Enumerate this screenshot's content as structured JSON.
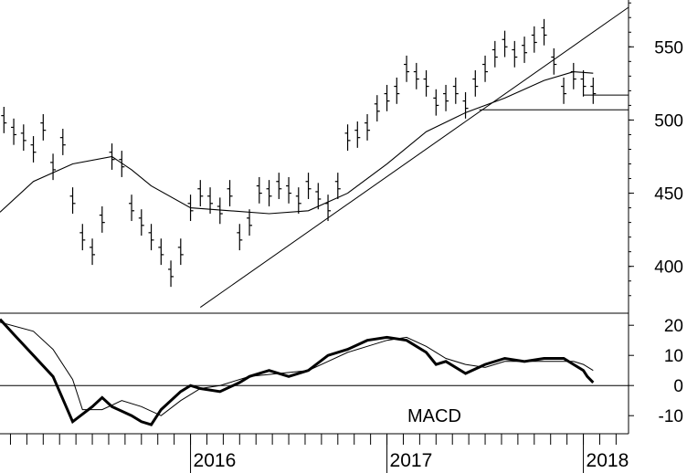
{
  "chart_data": [
    {
      "type": "line",
      "title": "",
      "xlabel": "",
      "ylabel": "",
      "ylim": [
        368,
        582
      ],
      "yticks": [
        400,
        450,
        500,
        550
      ],
      "x_ticks": [
        "2016",
        "2017",
        "2018"
      ],
      "x_range": [
        2015.03,
        2018.23
      ],
      "grid": false,
      "series": [
        {
          "style": "weekly-bars",
          "x": [
            2015.05,
            2015.1,
            2015.15,
            2015.2,
            2015.25,
            2015.3,
            2015.35,
            2015.4,
            2015.45,
            2015.5,
            2015.55,
            2015.6,
            2015.65,
            2015.7,
            2015.75,
            2015.8,
            2015.85,
            2015.9,
            2015.95,
            2016.0,
            2016.05,
            2016.1,
            2016.15,
            2016.2,
            2016.25,
            2016.3,
            2016.35,
            2016.4,
            2016.45,
            2016.5,
            2016.55,
            2016.6,
            2016.65,
            2016.7,
            2016.75,
            2016.8,
            2016.85,
            2016.9,
            2016.95,
            2017.0,
            2017.05,
            2017.1,
            2017.15,
            2017.2,
            2017.25,
            2017.3,
            2017.35,
            2017.4,
            2017.45,
            2017.5,
            2017.55,
            2017.6,
            2017.65,
            2017.7,
            2017.75,
            2017.8,
            2017.85,
            2017.9,
            2017.95,
            2018.0,
            2018.05
          ],
          "y": [
            500,
            492,
            488,
            480,
            495,
            468,
            485,
            445,
            420,
            410,
            432,
            475,
            470,
            440,
            430,
            420,
            410,
            395,
            410,
            440,
            450,
            445,
            438,
            450,
            420,
            430,
            452,
            450,
            455,
            452,
            445,
            455,
            448,
            440,
            455,
            488,
            490,
            495,
            508,
            515,
            520,
            535,
            530,
            525,
            512,
            515,
            520,
            510,
            525,
            535,
            545,
            552,
            545,
            548,
            555,
            560,
            540,
            520,
            530,
            525,
            520
          ]
        }
      ],
      "moving_average": {
        "x": [
          2015.03,
          2015.2,
          2015.4,
          2015.6,
          2015.7,
          2015.8,
          2016.0,
          2016.2,
          2016.4,
          2016.6,
          2016.8,
          2017.0,
          2017.2,
          2017.4,
          2017.6,
          2017.8,
          2017.95,
          2018.05
        ],
        "y": [
          437,
          458,
          470,
          475,
          466,
          455,
          440,
          438,
          436,
          438,
          450,
          470,
          492,
          505,
          515,
          527,
          533,
          532
        ]
      },
      "annotations": {
        "trendline": {
          "from": [
            2016.05,
            372
          ],
          "to": [
            2018.23,
            577
          ]
        },
        "support_lines": [
          {
            "y": 507,
            "x_from": 2017.47,
            "x_to": 2018.23
          },
          {
            "y": 517,
            "x_from": 2018.0,
            "x_to": 2018.23
          }
        ]
      }
    },
    {
      "type": "line",
      "title": "MACD",
      "ylim": [
        -16,
        24
      ],
      "yticks": [
        20,
        10,
        0,
        -10
      ],
      "x_range": [
        2015.03,
        2018.23
      ],
      "series": [
        {
          "style": "thick",
          "x": [
            2015.03,
            2015.1,
            2015.2,
            2015.3,
            2015.4,
            2015.5,
            2015.55,
            2015.6,
            2015.7,
            2015.75,
            2015.8,
            2015.85,
            2015.95,
            2016.0,
            2016.05,
            2016.15,
            2016.25,
            2016.3,
            2016.4,
            2016.5,
            2016.6,
            2016.7,
            2016.8,
            2016.9,
            2017.0,
            2017.1,
            2017.2,
            2017.25,
            2017.3,
            2017.4,
            2017.5,
            2017.6,
            2017.7,
            2017.8,
            2017.9,
            2017.95,
            2018.0,
            2018.02,
            2018.05
          ],
          "y": [
            22,
            17,
            10,
            3,
            -12,
            -7,
            -4,
            -7,
            -10,
            -12,
            -13,
            -8,
            -2,
            0,
            -1,
            -2,
            1,
            3,
            5,
            3,
            5,
            10,
            12,
            15,
            16,
            15,
            11,
            7,
            8,
            4,
            7,
            9,
            8,
            9,
            9,
            7,
            5,
            3,
            1
          ]
        },
        {
          "style": "thin",
          "x": [
            2015.03,
            2015.2,
            2015.3,
            2015.4,
            2015.45,
            2015.55,
            2015.65,
            2015.75,
            2015.85,
            2015.95,
            2016.05,
            2016.15,
            2016.3,
            2016.45,
            2016.6,
            2016.7,
            2016.8,
            2016.9,
            2017.0,
            2017.1,
            2017.2,
            2017.3,
            2017.4,
            2017.5,
            2017.6,
            2017.7,
            2017.8,
            2017.9,
            2017.95,
            2018.0,
            2018.05
          ],
          "y": [
            21,
            18,
            12,
            2,
            -8,
            -8,
            -5,
            -7,
            -10,
            -5,
            -1,
            0,
            3,
            4,
            5,
            8,
            11,
            13,
            15,
            16,
            13,
            9,
            7,
            6,
            8,
            8,
            8,
            8,
            8,
            7,
            5
          ]
        }
      ]
    }
  ]
}
